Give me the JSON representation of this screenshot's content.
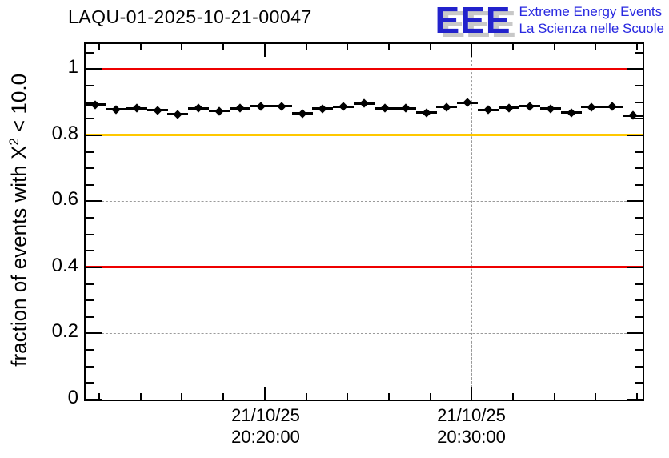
{
  "header": {
    "title": "LAQU-01-2025-10-21-00047"
  },
  "logo": {
    "acronym": "EEE",
    "line1": "Extreme Energy Events",
    "line2": "La Scienza nelle Scuole",
    "accent_color": "#2222cc"
  },
  "chart_data": {
    "type": "scatter",
    "title": "LAQU-01-2025-10-21-00047",
    "ylabel_prefix": "fraction of events with X",
    "ylabel_sup": "2",
    "ylabel_suffix": " < 10.0",
    "xlabel": "",
    "ylim": [
      0,
      1.076
    ],
    "grid": {
      "style": "dashed",
      "color": "#9a9a9a",
      "horizontal_at": [
        0.2,
        0.4,
        0.6,
        0.8,
        1.0
      ],
      "vertical_at_major_x": true
    },
    "legend": "none",
    "y_major_ticks": [
      {
        "v": 0.0,
        "label": "0"
      },
      {
        "v": 0.2,
        "label": "0.2"
      },
      {
        "v": 0.4,
        "label": "0.4"
      },
      {
        "v": 0.6,
        "label": "0.6"
      },
      {
        "v": 0.8,
        "label": "0.8"
      },
      {
        "v": 1.0,
        "label": "1"
      }
    ],
    "y_minor_step": 0.05,
    "x_major_tick_labels": [
      {
        "date": "21/10/25",
        "time": "20:20:00"
      },
      {
        "date": "21/10/25",
        "time": "20:30:00"
      }
    ],
    "reference_lines": [
      {
        "y": 1.0,
        "color": "#ee0000"
      },
      {
        "y": 0.8,
        "color": "#ffc800"
      },
      {
        "y": 0.4,
        "color": "#ee0000"
      }
    ],
    "marker": {
      "shape": "diamond",
      "color": "#000000",
      "x_error_minutes": 0.5
    },
    "points": [
      {
        "time": "20:12:00",
        "value": 0.892
      },
      {
        "time": "20:13:00",
        "value": 0.878
      },
      {
        "time": "20:14:00",
        "value": 0.882
      },
      {
        "time": "20:15:00",
        "value": 0.876
      },
      {
        "time": "20:16:00",
        "value": 0.863
      },
      {
        "time": "20:17:00",
        "value": 0.882
      },
      {
        "time": "20:18:00",
        "value": 0.873
      },
      {
        "time": "20:19:00",
        "value": 0.882
      },
      {
        "time": "20:20:00",
        "value": 0.887
      },
      {
        "time": "20:21:00",
        "value": 0.888
      },
      {
        "time": "20:22:00",
        "value": 0.866
      },
      {
        "time": "20:23:00",
        "value": 0.88
      },
      {
        "time": "20:24:00",
        "value": 0.886
      },
      {
        "time": "20:25:00",
        "value": 0.896
      },
      {
        "time": "20:26:00",
        "value": 0.882
      },
      {
        "time": "20:27:00",
        "value": 0.882
      },
      {
        "time": "20:28:00",
        "value": 0.868
      },
      {
        "time": "20:29:00",
        "value": 0.885
      },
      {
        "time": "20:30:00",
        "value": 0.899
      },
      {
        "time": "20:31:00",
        "value": 0.877
      },
      {
        "time": "20:32:00",
        "value": 0.883
      },
      {
        "time": "20:33:00",
        "value": 0.888
      },
      {
        "time": "20:34:00",
        "value": 0.88
      },
      {
        "time": "20:35:00",
        "value": 0.868
      },
      {
        "time": "20:36:00",
        "value": 0.885
      },
      {
        "time": "20:37:00",
        "value": 0.886
      },
      {
        "time": "20:38:00",
        "value": 0.86
      }
    ]
  }
}
